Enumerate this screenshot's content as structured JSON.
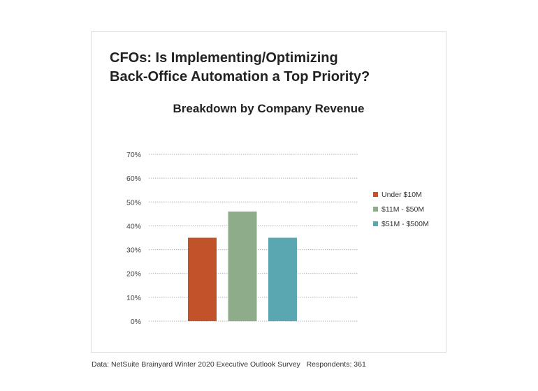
{
  "chart_data": {
    "type": "bar",
    "title": "CFOs: Is Implementing/Optimizing Back-Office Automation a Top Priority?",
    "title_lines": [
      "CFOs: Is Implementing/Optimizing",
      "Back-Office Automation a Top Priority?"
    ],
    "subtitle": "Breakdown by Company Revenue",
    "xlabel": "",
    "ylabel": "",
    "ylim": [
      0,
      70
    ],
    "yticks": [
      0,
      10,
      20,
      30,
      40,
      50,
      60,
      70
    ],
    "ytick_labels": [
      "0%",
      "10%",
      "20%",
      "30%",
      "40%",
      "50%",
      "60%",
      "70%"
    ],
    "grid": true,
    "legend_position": "right",
    "series": [
      {
        "name": "Under $10M",
        "value": 35,
        "color": "#c0532a"
      },
      {
        "name": "$11M - $50M",
        "value": 46,
        "color": "#8fac8a"
      },
      {
        "name": "$51M - $500M",
        "value": 35,
        "color": "#5aa7b2"
      }
    ]
  },
  "footer": {
    "source": "Data: NetSuite Brainyard Winter 2020 Executive Outlook Survey",
    "respondents": "Respondents: 361"
  }
}
